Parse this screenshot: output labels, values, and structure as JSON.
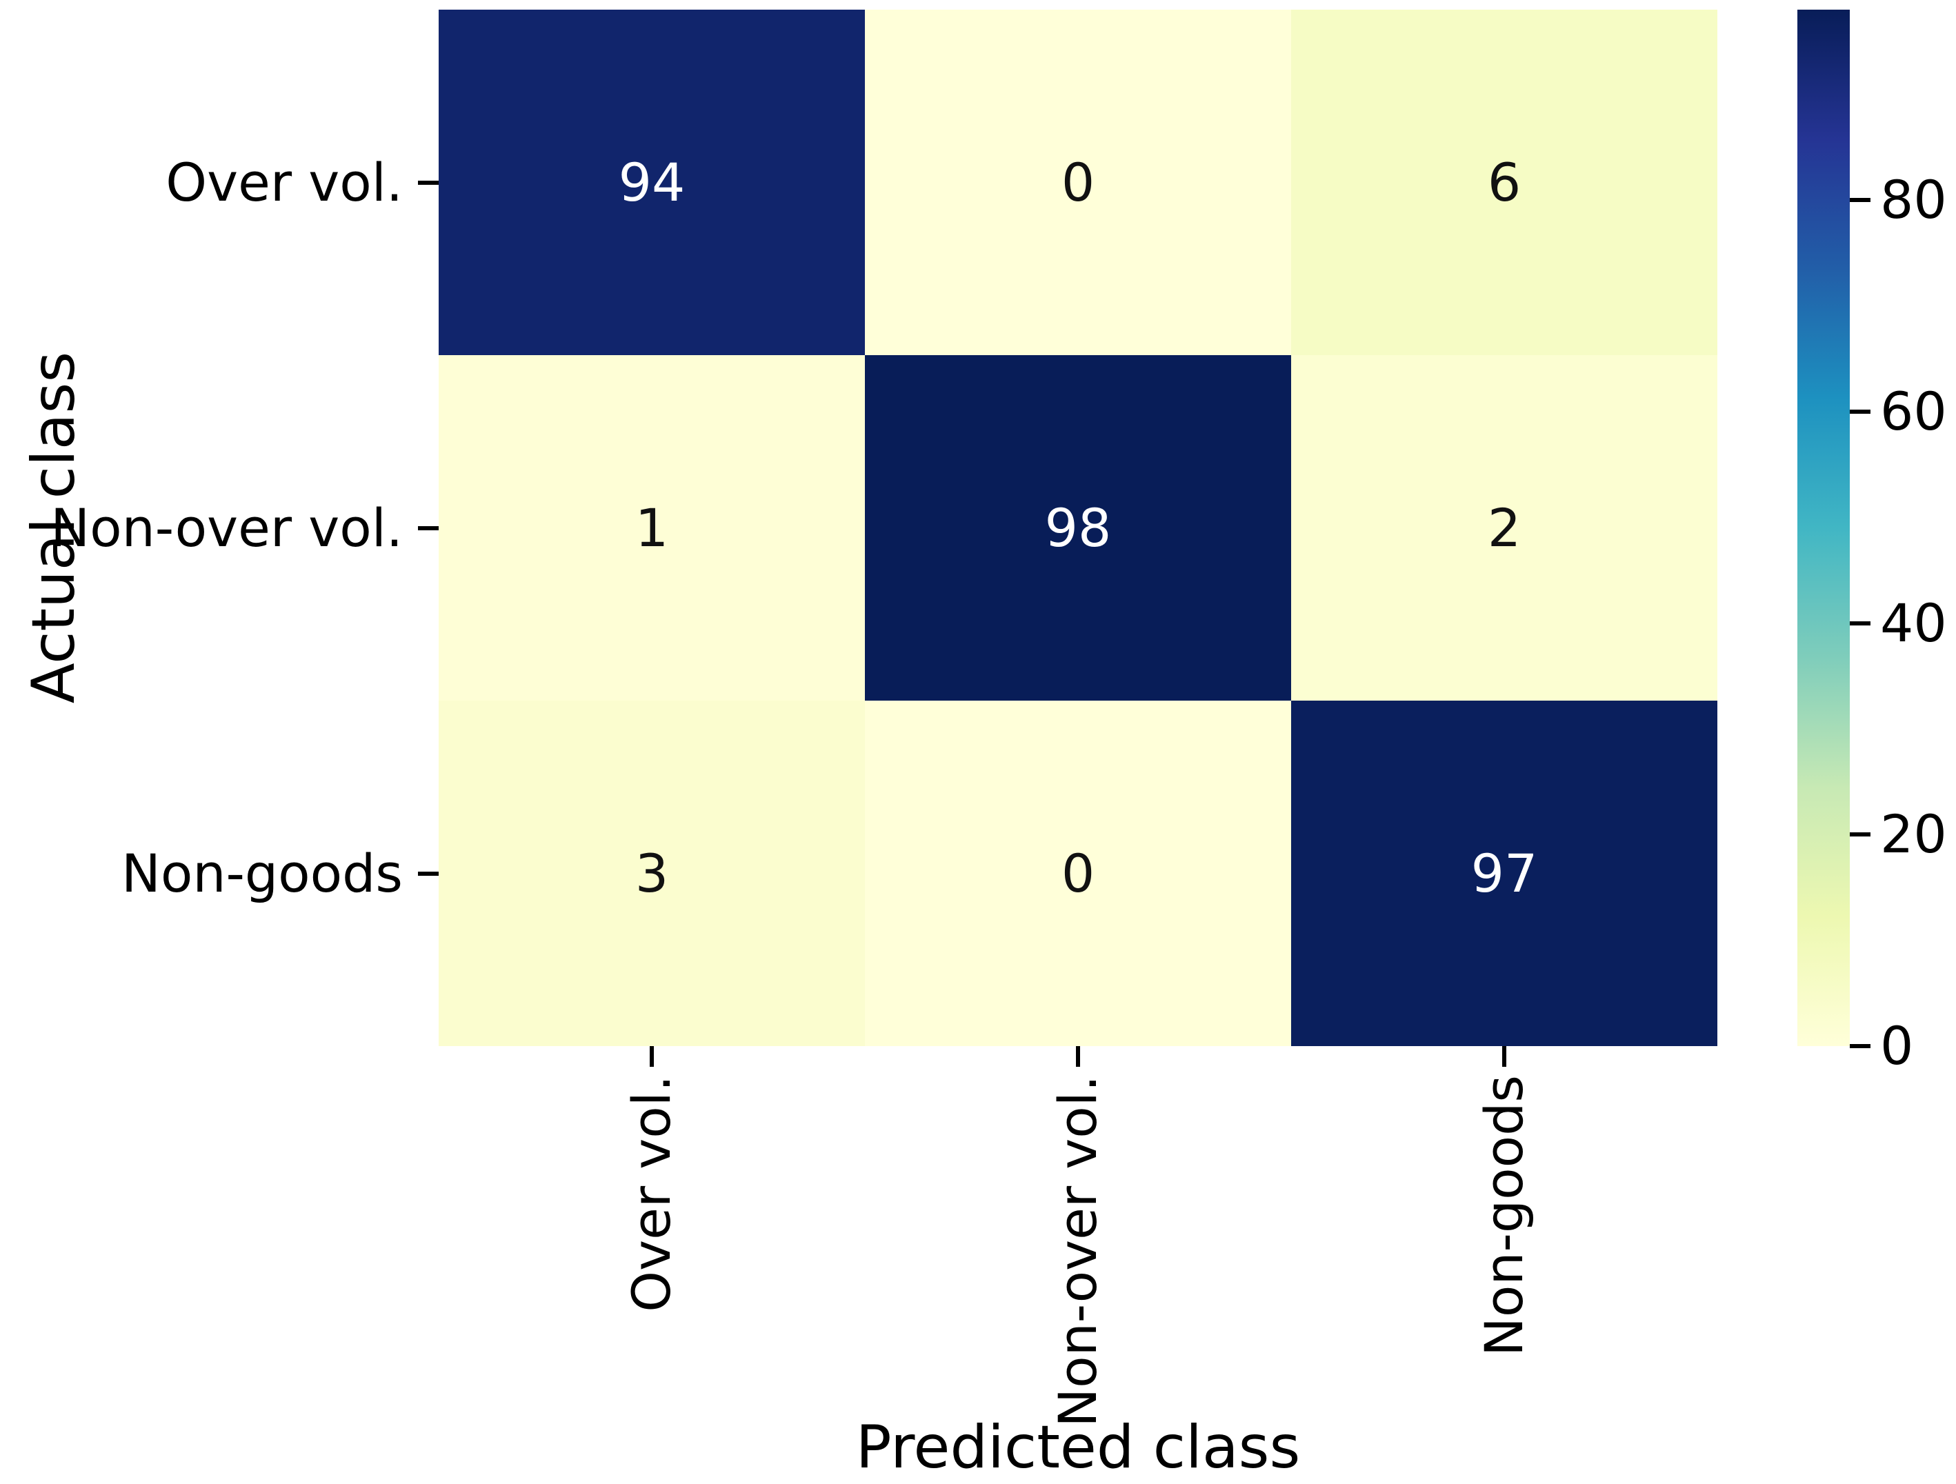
{
  "chart_data": {
    "type": "heatmap",
    "title": "",
    "xlabel": "Predicted class",
    "ylabel": "Actual class",
    "x_categories": [
      "Over vol.",
      "Non-over vol.",
      "Non-goods"
    ],
    "y_categories": [
      "Over vol.",
      "Non-over vol.",
      "Non-goods"
    ],
    "matrix": [
      [
        94,
        0,
        6
      ],
      [
        1,
        98,
        2
      ],
      [
        3,
        0,
        97
      ]
    ],
    "vmin": 0,
    "vmax": 98,
    "colorbar_ticks": [
      0,
      20,
      40,
      60,
      80
    ],
    "colorbar_position": "right",
    "grid": false,
    "colormap_name": "YlGnBu",
    "colormap_stops": [
      {
        "pos": 0.0,
        "color": "#ffffd9"
      },
      {
        "pos": 0.125,
        "color": "#edf8b1"
      },
      {
        "pos": 0.25,
        "color": "#c7e9b4"
      },
      {
        "pos": 0.375,
        "color": "#7fcdbb"
      },
      {
        "pos": 0.5,
        "color": "#41b6c4"
      },
      {
        "pos": 0.625,
        "color": "#1d91c0"
      },
      {
        "pos": 0.75,
        "color": "#225ea8"
      },
      {
        "pos": 0.875,
        "color": "#253494"
      },
      {
        "pos": 1.0,
        "color": "#081d58"
      }
    ],
    "colors": {
      "annotation_on_dark": "#ffffff",
      "annotation_on_light": "#111111",
      "tick": "#000000",
      "label": "#000000",
      "background": "#ffffff"
    }
  }
}
